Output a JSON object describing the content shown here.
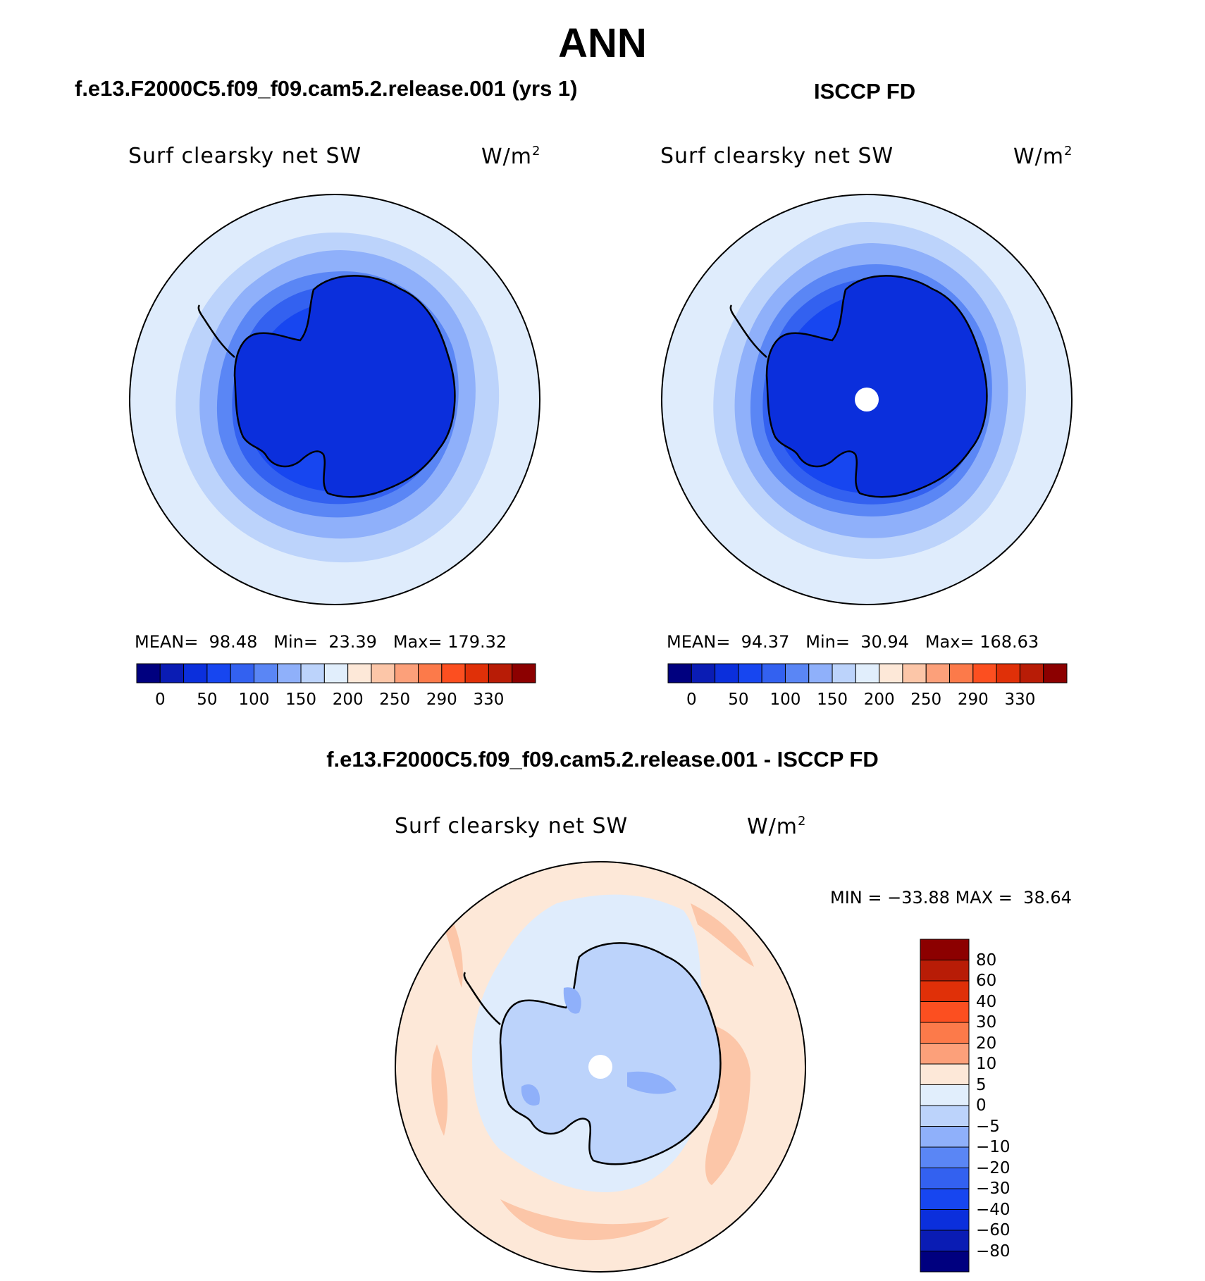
{
  "figure": {
    "title": "ANN",
    "bottom_title": "f.e13.F2000C5.f09_f09.cam5.2.release.001 - ISCCP FD"
  },
  "panels": [
    {
      "case_title": "f.e13.F2000C5.f09_f09.cam5.2.release.001 (yrs 1)",
      "variable": "Surf clearsky net SW",
      "units": "W/m",
      "units_sup": "2",
      "stats": {
        "mean_label": "MEAN=",
        "mean": "98.48",
        "min_label": "Min=",
        "min": "23.39",
        "max_label": "Max=",
        "max": "179.32"
      }
    },
    {
      "case_title": "ISCCP FD",
      "variable": "Surf clearsky net SW",
      "units": "W/m",
      "units_sup": "2",
      "stats": {
        "mean_label": "MEAN=",
        "mean": "94.37",
        "min_label": "Min=",
        "min": "30.94",
        "max_label": "Max=",
        "max": "168.63"
      }
    },
    {
      "case_title": "f.e13.F2000C5.f09_f09.cam5.2.release.001 - ISCCP FD",
      "variable": "Surf clearsky net SW",
      "units": "W/m",
      "units_sup": "2",
      "stats": {
        "min_label": "MIN =",
        "min": "−33.88",
        "max_label": "MAX =",
        "max": "38.64"
      }
    }
  ],
  "colorbars": {
    "field": {
      "colors": [
        "#00007f",
        "#0a1cb4",
        "#0b2fdc",
        "#1746f0",
        "#3361f0",
        "#5a86f5",
        "#8fb0fa",
        "#bcd3fb",
        "#e1eefc",
        "#fde8d8",
        "#fcc6a8",
        "#fca07a",
        "#fc7a4a",
        "#fc4f20",
        "#e03008",
        "#b81c06",
        "#8c0000"
      ],
      "tick_labels": [
        "0",
        "50",
        "100",
        "150",
        "200",
        "250",
        "290",
        "330"
      ]
    },
    "diff": {
      "colors": [
        "#8c0000",
        "#b81c06",
        "#e03008",
        "#fc4f20",
        "#fc7a4a",
        "#fca07a",
        "#fde8d8",
        "#e1eefc",
        "#bcd3fb",
        "#8fb0fa",
        "#5a86f5",
        "#3361f0",
        "#1746f0",
        "#0b2fdc",
        "#0a1cb4",
        "#00007f"
      ],
      "tick_labels": [
        "80",
        "60",
        "40",
        "30",
        "20",
        "10",
        "5",
        "0",
        "−5",
        "−10",
        "−20",
        "−30",
        "−40",
        "−60",
        "−80"
      ]
    }
  },
  "map_colors": {
    "p1": [
      "#dfecfc",
      "#bcd3fb",
      "#8fb0fa",
      "#5a86f5",
      "#3361f0",
      "#1746f0",
      "#0b2fdc"
    ],
    "p2": [
      "#dfecfc",
      "#bcd3fb",
      "#8fb0fa",
      "#5a86f5",
      "#3361f0",
      "#1746f0",
      "#0b2fdc"
    ],
    "p3": [
      "#fde8d8",
      "#fcc6a8",
      "#dfecfc",
      "#bcd3fb",
      "#8fb0fa",
      "#5a86f5"
    ],
    "missing": "#ffffff",
    "coast": "#000000"
  }
}
